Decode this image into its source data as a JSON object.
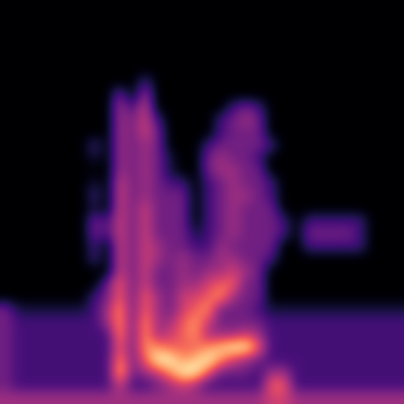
{
  "chart_data": {
    "type": "heatmap",
    "color": "magma",
    "tick_labels": false,
    "cells": [
      [
        0,
        0,
        0,
        0,
        0,
        0,
        0,
        0,
        0,
        0,
        0,
        0,
        0,
        0,
        0,
        0,
        0,
        0,
        0,
        0,
        0,
        0,
        0,
        0,
        0,
        0,
        0,
        0,
        0,
        0,
        0,
        0
      ],
      [
        0,
        0,
        0,
        0,
        0,
        0,
        0,
        0,
        0,
        0,
        0,
        0,
        0,
        0,
        0,
        0,
        0,
        0,
        0,
        0,
        0,
        0,
        0,
        0,
        0,
        0,
        0,
        0,
        0,
        0,
        0,
        0
      ],
      [
        0,
        0,
        0,
        0,
        0,
        0,
        0,
        0,
        0,
        0,
        0,
        0,
        0,
        0,
        0,
        0,
        0,
        0,
        0,
        0,
        0,
        0,
        0,
        0,
        0,
        0,
        0,
        0,
        0,
        0,
        0,
        0
      ],
      [
        0,
        0,
        0,
        0,
        0,
        0,
        0,
        0,
        0,
        0,
        0,
        0,
        0,
        0,
        0,
        0,
        0,
        0,
        0,
        0,
        0,
        0,
        0,
        0,
        0,
        0,
        0,
        0,
        0,
        0,
        0,
        0
      ],
      [
        0,
        0,
        0,
        0,
        0,
        0,
        0,
        0,
        0,
        0,
        0,
        0,
        0,
        0,
        0,
        0,
        0,
        0,
        0,
        0,
        0,
        0,
        0,
        0,
        0,
        0,
        0,
        0,
        0,
        0,
        0,
        0
      ],
      [
        0,
        0,
        0,
        0,
        0,
        0,
        0,
        0,
        0,
        0,
        0,
        0,
        0,
        0,
        0,
        0,
        0,
        0,
        0,
        0,
        0,
        0,
        0,
        0,
        0,
        0,
        0,
        0,
        0,
        0,
        0,
        0
      ],
      [
        0,
        0,
        0,
        0,
        0,
        0,
        0,
        0,
        0,
        0,
        0,
        2,
        0,
        0,
        0,
        0,
        0,
        0,
        0,
        0,
        0,
        0,
        0,
        0,
        0,
        0,
        0,
        0,
        0,
        0,
        0,
        0
      ],
      [
        0,
        0,
        0,
        0,
        0,
        0,
        0,
        0,
        0,
        3,
        0,
        4,
        0,
        0,
        0,
        0,
        0,
        0,
        0,
        0,
        0,
        0,
        0,
        0,
        0,
        0,
        0,
        0,
        0,
        0,
        0,
        0
      ],
      [
        0,
        0,
        0,
        0,
        0,
        0,
        0,
        0,
        0,
        4,
        2,
        5,
        0,
        0,
        0,
        0,
        0,
        0,
        2,
        3,
        2,
        0,
        0,
        0,
        0,
        0,
        0,
        0,
        0,
        0,
        0,
        0
      ],
      [
        0,
        0,
        0,
        0,
        0,
        0,
        0,
        0,
        0,
        4,
        3,
        5,
        2,
        0,
        0,
        0,
        0,
        2,
        3,
        4,
        3,
        0,
        0,
        0,
        0,
        0,
        0,
        0,
        0,
        0,
        0,
        0
      ],
      [
        0,
        0,
        0,
        0,
        0,
        0,
        0,
        0,
        0,
        4,
        3,
        5,
        3,
        0,
        0,
        0,
        0,
        2,
        3,
        3,
        3,
        0,
        0,
        0,
        0,
        0,
        0,
        0,
        0,
        0,
        0,
        0
      ],
      [
        0,
        0,
        0,
        0,
        0,
        0,
        0,
        2,
        0,
        4,
        3,
        4,
        3,
        0,
        0,
        0,
        2,
        3,
        3,
        3,
        3,
        2,
        0,
        0,
        0,
        0,
        0,
        0,
        0,
        0,
        0,
        0
      ],
      [
        0,
        0,
        0,
        0,
        0,
        0,
        0,
        1,
        0,
        4,
        3,
        4,
        3,
        1,
        0,
        0,
        3,
        4,
        3,
        3,
        2,
        0,
        0,
        0,
        0,
        0,
        0,
        0,
        0,
        0,
        0,
        0
      ],
      [
        0,
        0,
        0,
        0,
        0,
        0,
        0,
        0,
        0,
        4,
        3,
        4,
        3,
        1,
        0,
        0,
        3,
        4,
        4,
        3,
        3,
        0,
        0,
        0,
        0,
        0,
        0,
        0,
        0,
        0,
        0,
        0
      ],
      [
        0,
        0,
        0,
        0,
        0,
        0,
        0,
        1,
        0,
        5,
        3,
        4,
        3,
        2,
        2,
        0,
        2,
        3,
        4,
        3,
        3,
        2,
        0,
        0,
        0,
        0,
        0,
        0,
        0,
        0,
        0,
        0
      ],
      [
        0,
        0,
        0,
        0,
        0,
        0,
        0,
        2,
        0,
        5,
        3,
        4,
        3,
        3,
        3,
        0,
        2,
        3,
        4,
        4,
        3,
        2,
        0,
        0,
        0,
        0,
        0,
        0,
        0,
        0,
        0,
        0
      ],
      [
        0,
        0,
        0,
        0,
        0,
        0,
        0,
        1,
        0,
        5,
        3,
        5,
        3,
        3,
        3,
        0,
        2,
        3,
        4,
        3,
        3,
        3,
        0,
        0,
        0,
        0,
        0,
        0,
        0,
        0,
        0,
        0
      ],
      [
        0,
        0,
        0,
        0,
        0,
        0,
        0,
        3,
        2,
        5,
        3,
        5,
        3,
        3,
        3,
        0,
        2,
        3,
        4,
        3,
        3,
        3,
        2,
        0,
        2,
        2,
        2,
        2,
        2,
        0,
        0,
        0
      ],
      [
        0,
        0,
        0,
        0,
        0,
        0,
        0,
        3,
        2,
        5,
        3,
        5,
        3,
        3,
        3,
        1,
        2,
        3,
        4,
        3,
        3,
        3,
        2,
        0,
        3,
        3,
        3,
        3,
        2,
        0,
        0,
        0
      ],
      [
        0,
        0,
        0,
        0,
        0,
        0,
        0,
        2,
        0,
        5,
        3,
        5,
        4,
        3,
        3,
        2,
        2,
        4,
        3,
        3,
        3,
        3,
        0,
        0,
        2,
        2,
        2,
        2,
        2,
        0,
        0,
        0
      ],
      [
        0,
        0,
        0,
        0,
        0,
        0,
        0,
        2,
        0,
        5,
        3,
        5,
        4,
        3,
        4,
        3,
        3,
        4,
        4,
        3,
        3,
        2,
        0,
        0,
        0,
        0,
        0,
        0,
        0,
        0,
        0,
        0
      ],
      [
        0,
        0,
        0,
        0,
        0,
        0,
        0,
        0,
        0,
        5,
        3,
        5,
        3,
        3,
        4,
        3,
        4,
        4,
        5,
        4,
        3,
        0,
        0,
        0,
        0,
        0,
        0,
        0,
        0,
        0,
        0,
        0
      ],
      [
        0,
        0,
        0,
        0,
        0,
        0,
        0,
        0,
        3,
        6,
        3,
        5,
        3,
        3,
        4,
        4,
        5,
        6,
        6,
        3,
        3,
        0,
        0,
        0,
        0,
        0,
        0,
        0,
        0,
        0,
        0,
        0
      ],
      [
        0,
        0,
        0,
        0,
        0,
        0,
        0,
        2,
        3,
        6,
        3,
        6,
        4,
        3,
        5,
        5,
        6,
        7,
        4,
        3,
        3,
        0,
        0,
        0,
        0,
        0,
        0,
        0,
        0,
        0,
        0,
        0
      ],
      [
        3,
        1,
        1,
        1,
        1,
        1,
        1,
        2,
        4,
        7,
        3,
        6,
        4,
        3,
        5,
        6,
        7,
        3,
        3,
        3,
        2,
        1,
        1,
        1,
        1,
        1,
        1,
        1,
        1,
        1,
        1,
        1
      ],
      [
        3,
        2,
        2,
        2,
        2,
        2,
        2,
        2,
        4,
        7,
        3,
        7,
        4,
        4,
        6,
        7,
        5,
        3,
        3,
        3,
        3,
        2,
        2,
        2,
        2,
        2,
        2,
        2,
        2,
        2,
        2,
        2
      ],
      [
        3,
        2,
        2,
        2,
        2,
        2,
        2,
        2,
        2,
        7,
        3,
        7,
        4,
        5,
        6,
        7,
        4,
        4,
        4,
        5,
        4,
        2,
        2,
        2,
        2,
        2,
        2,
        2,
        2,
        2,
        2,
        2
      ],
      [
        3,
        2,
        2,
        2,
        2,
        2,
        2,
        2,
        2,
        6,
        3,
        7,
        7,
        6,
        6,
        6,
        7,
        8,
        9,
        9,
        6,
        2,
        2,
        2,
        2,
        2,
        2,
        2,
        2,
        2,
        2,
        2
      ],
      [
        3,
        2,
        2,
        2,
        2,
        2,
        2,
        2,
        2,
        7,
        3,
        6,
        9,
        9,
        7,
        8,
        9,
        7,
        5,
        4,
        3,
        2,
        2,
        2,
        2,
        2,
        2,
        2,
        2,
        2,
        2,
        2
      ],
      [
        3,
        2,
        2,
        2,
        2,
        2,
        2,
        2,
        2,
        8,
        3,
        4,
        5,
        7,
        9,
        9,
        6,
        3,
        3,
        3,
        2,
        4,
        4,
        2,
        2,
        2,
        2,
        2,
        2,
        2,
        2,
        2
      ],
      [
        3,
        2,
        2,
        2,
        2,
        2,
        2,
        2,
        2,
        5,
        2,
        2,
        3,
        4,
        5,
        4,
        2,
        2,
        2,
        2,
        2,
        6,
        6,
        2,
        2,
        2,
        2,
        2,
        2,
        2,
        2,
        2
      ],
      [
        4,
        4,
        4,
        4,
        4,
        4,
        4,
        4,
        4,
        4,
        4,
        4,
        4,
        4,
        4,
        4,
        4,
        4,
        4,
        4,
        4,
        5,
        5,
        4,
        4,
        4,
        4,
        4,
        4,
        4,
        4,
        4
      ]
    ]
  }
}
